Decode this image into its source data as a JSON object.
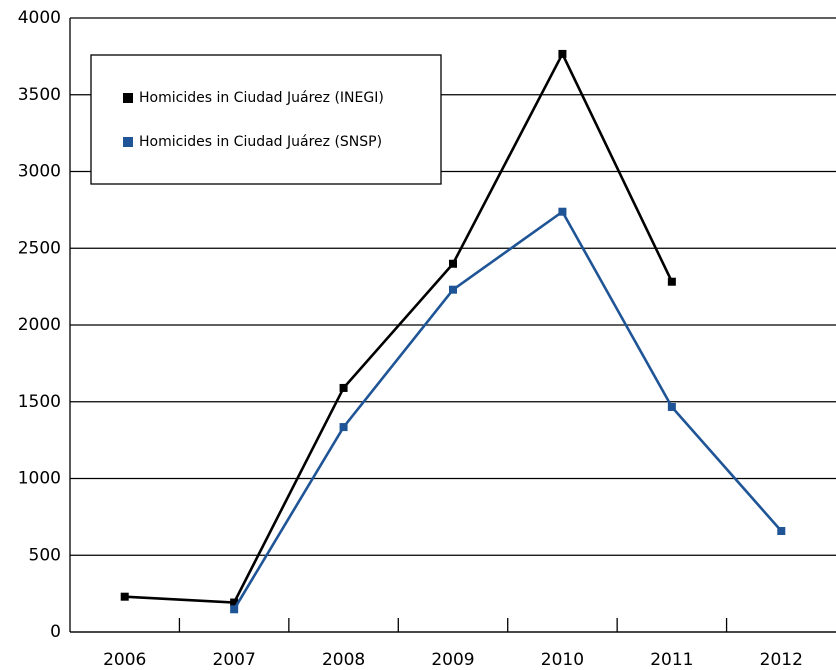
{
  "chart_data": {
    "type": "line",
    "categories": [
      "2006",
      "2007",
      "2008",
      "2009",
      "2010",
      "2011",
      "2012"
    ],
    "series": [
      {
        "name": "Homicides in Ciudad Juárez (INEGI)",
        "color": "#000000",
        "values": [
          230,
          192,
          1590,
          2399,
          3766,
          2282,
          null
        ]
      },
      {
        "name": "Homicides in Ciudad Juárez (SNSP)",
        "color": "#1f5596",
        "values": [
          null,
          148,
          1335,
          2230,
          2738,
          1466,
          658
        ]
      }
    ],
    "ylim": [
      0,
      4000
    ],
    "yticks": [
      0,
      500,
      1000,
      1500,
      2000,
      2500,
      3000,
      3500,
      4000
    ],
    "grid": true,
    "legend": "upper left"
  }
}
